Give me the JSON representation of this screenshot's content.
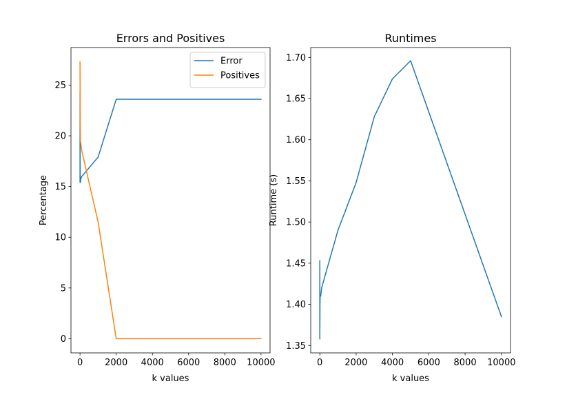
{
  "chart_data": [
    {
      "type": "line",
      "title": "Errors and Positives",
      "xlabel": "k values",
      "ylabel": "Percentage",
      "xlim": [
        -500,
        10500
      ],
      "ylim": [
        -1.4,
        28.7
      ],
      "xticks": [
        0,
        2000,
        4000,
        6000,
        8000,
        10000
      ],
      "yticks": [
        0,
        5,
        10,
        15,
        20,
        25
      ],
      "grid": false,
      "legend_position": "top-right",
      "series": [
        {
          "name": "Error",
          "color": "#1f77b4",
          "x": [
            1,
            2,
            3,
            5,
            10,
            20,
            50,
            100,
            1000,
            2000,
            3000,
            4000,
            5000,
            10000
          ],
          "y": [
            24.3,
            15.4,
            22.0,
            17.0,
            15.6,
            15.4,
            15.8,
            16.0,
            17.9,
            23.6,
            23.6,
            23.6,
            23.6,
            23.6
          ]
        },
        {
          "name": "Positives",
          "color": "#ff7f0e",
          "x": [
            1,
            2,
            3,
            5,
            10,
            20,
            50,
            100,
            1000,
            2000,
            3000,
            4000,
            5000,
            10000
          ],
          "y": [
            27.3,
            25.5,
            26.0,
            22.5,
            21.0,
            19.5,
            19.2,
            18.5,
            11.5,
            0,
            0,
            0,
            0,
            0
          ]
        }
      ]
    },
    {
      "type": "line",
      "title": "Runtimes",
      "xlabel": "k values",
      "ylabel": "Runtime (s)",
      "xlim": [
        -500,
        10500
      ],
      "ylim": [
        1.341,
        1.712
      ],
      "xticks": [
        0,
        2000,
        4000,
        6000,
        8000,
        10000
      ],
      "yticks": [
        1.35,
        1.4,
        1.45,
        1.5,
        1.55,
        1.6,
        1.65,
        1.7
      ],
      "grid": false,
      "series": [
        {
          "color": "#1f77b4",
          "x": [
            1,
            2,
            3,
            5,
            10,
            20,
            50,
            100,
            1000,
            2000,
            3000,
            4000,
            5000,
            10000
          ],
          "y": [
            1.453,
            1.358,
            1.38,
            1.37,
            1.4,
            1.41,
            1.41,
            1.42,
            1.49,
            1.548,
            1.628,
            1.674,
            1.696,
            1.385
          ]
        }
      ]
    }
  ]
}
